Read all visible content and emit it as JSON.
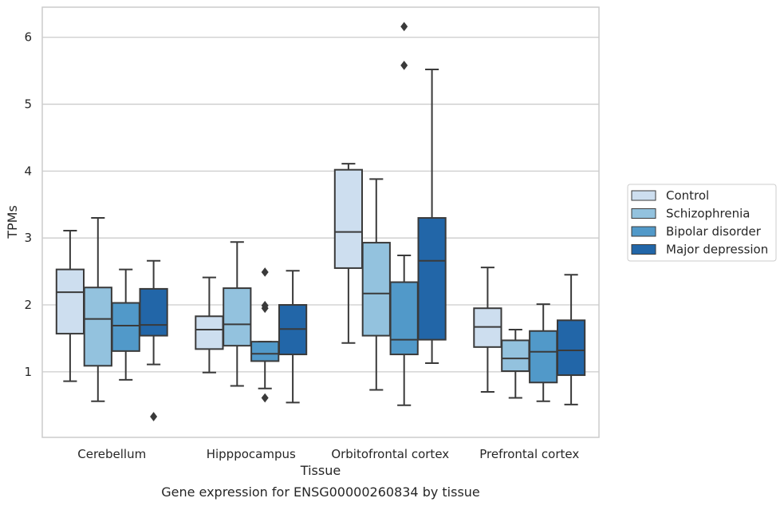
{
  "chart_data": {
    "type": "boxplot",
    "caption": "Gene expression for ENSG00000260834 by tissue",
    "xlabel": "Tissue",
    "ylabel": "TPMs",
    "ylim": [
      0.02,
      6.45
    ],
    "yticks": [
      1,
      2,
      3,
      4,
      5,
      6
    ],
    "grid": "horizontal",
    "legend_position": "right",
    "categories": [
      "Cerebellum",
      "Hipppocampus",
      "Orbitofrontal cortex",
      "Prefrontal cortex"
    ],
    "series": [
      {
        "name": "Control",
        "color": "#cddeef",
        "boxes": [
          {
            "whislo": 0.86,
            "q1": 1.57,
            "med": 2.19,
            "q3": 2.53,
            "whishi": 3.11,
            "fliers": []
          },
          {
            "whislo": 0.99,
            "q1": 1.34,
            "med": 1.63,
            "q3": 1.83,
            "whishi": 2.41,
            "fliers": []
          },
          {
            "whislo": 1.43,
            "q1": 2.55,
            "med": 3.09,
            "q3": 4.02,
            "whishi": 4.11,
            "fliers": []
          },
          {
            "whislo": 0.7,
            "q1": 1.37,
            "med": 1.67,
            "q3": 1.95,
            "whishi": 2.56,
            "fliers": []
          }
        ]
      },
      {
        "name": "Schizophrenia",
        "color": "#93c2de",
        "boxes": [
          {
            "whislo": 0.56,
            "q1": 1.09,
            "med": 1.79,
            "q3": 2.26,
            "whishi": 3.3,
            "fliers": []
          },
          {
            "whislo": 0.79,
            "q1": 1.39,
            "med": 1.71,
            "q3": 2.25,
            "whishi": 2.94,
            "fliers": []
          },
          {
            "whislo": 0.73,
            "q1": 1.54,
            "med": 2.17,
            "q3": 2.93,
            "whishi": 3.88,
            "fliers": []
          },
          {
            "whislo": 0.61,
            "q1": 1.01,
            "med": 1.2,
            "q3": 1.47,
            "whishi": 1.63,
            "fliers": []
          }
        ]
      },
      {
        "name": "Bipolar disorder",
        "color": "#5199c9",
        "boxes": [
          {
            "whislo": 0.88,
            "q1": 1.31,
            "med": 1.69,
            "q3": 2.03,
            "whishi": 2.53,
            "fliers": []
          },
          {
            "whislo": 0.75,
            "q1": 1.16,
            "med": 1.27,
            "q3": 1.45,
            "whishi": 1.45,
            "fliers": [
              0.61,
              1.95,
              1.99,
              2.49
            ]
          },
          {
            "whislo": 0.5,
            "q1": 1.26,
            "med": 1.48,
            "q3": 2.34,
            "whishi": 2.74,
            "fliers": [
              5.58,
              6.16
            ]
          },
          {
            "whislo": 0.56,
            "q1": 0.84,
            "med": 1.3,
            "q3": 1.61,
            "whishi": 2.01,
            "fliers": []
          }
        ]
      },
      {
        "name": "Major depression",
        "color": "#2266a8",
        "boxes": [
          {
            "whislo": 1.11,
            "q1": 1.54,
            "med": 1.7,
            "q3": 2.24,
            "whishi": 2.66,
            "fliers": [
              0.33
            ]
          },
          {
            "whislo": 0.54,
            "q1": 1.26,
            "med": 1.64,
            "q3": 2.0,
            "whishi": 2.51,
            "fliers": []
          },
          {
            "whislo": 1.13,
            "q1": 1.48,
            "med": 2.66,
            "q3": 3.3,
            "whishi": 5.52,
            "fliers": []
          },
          {
            "whislo": 0.51,
            "q1": 0.95,
            "med": 1.32,
            "q3": 1.77,
            "whishi": 2.45,
            "fliers": []
          }
        ]
      }
    ]
  }
}
